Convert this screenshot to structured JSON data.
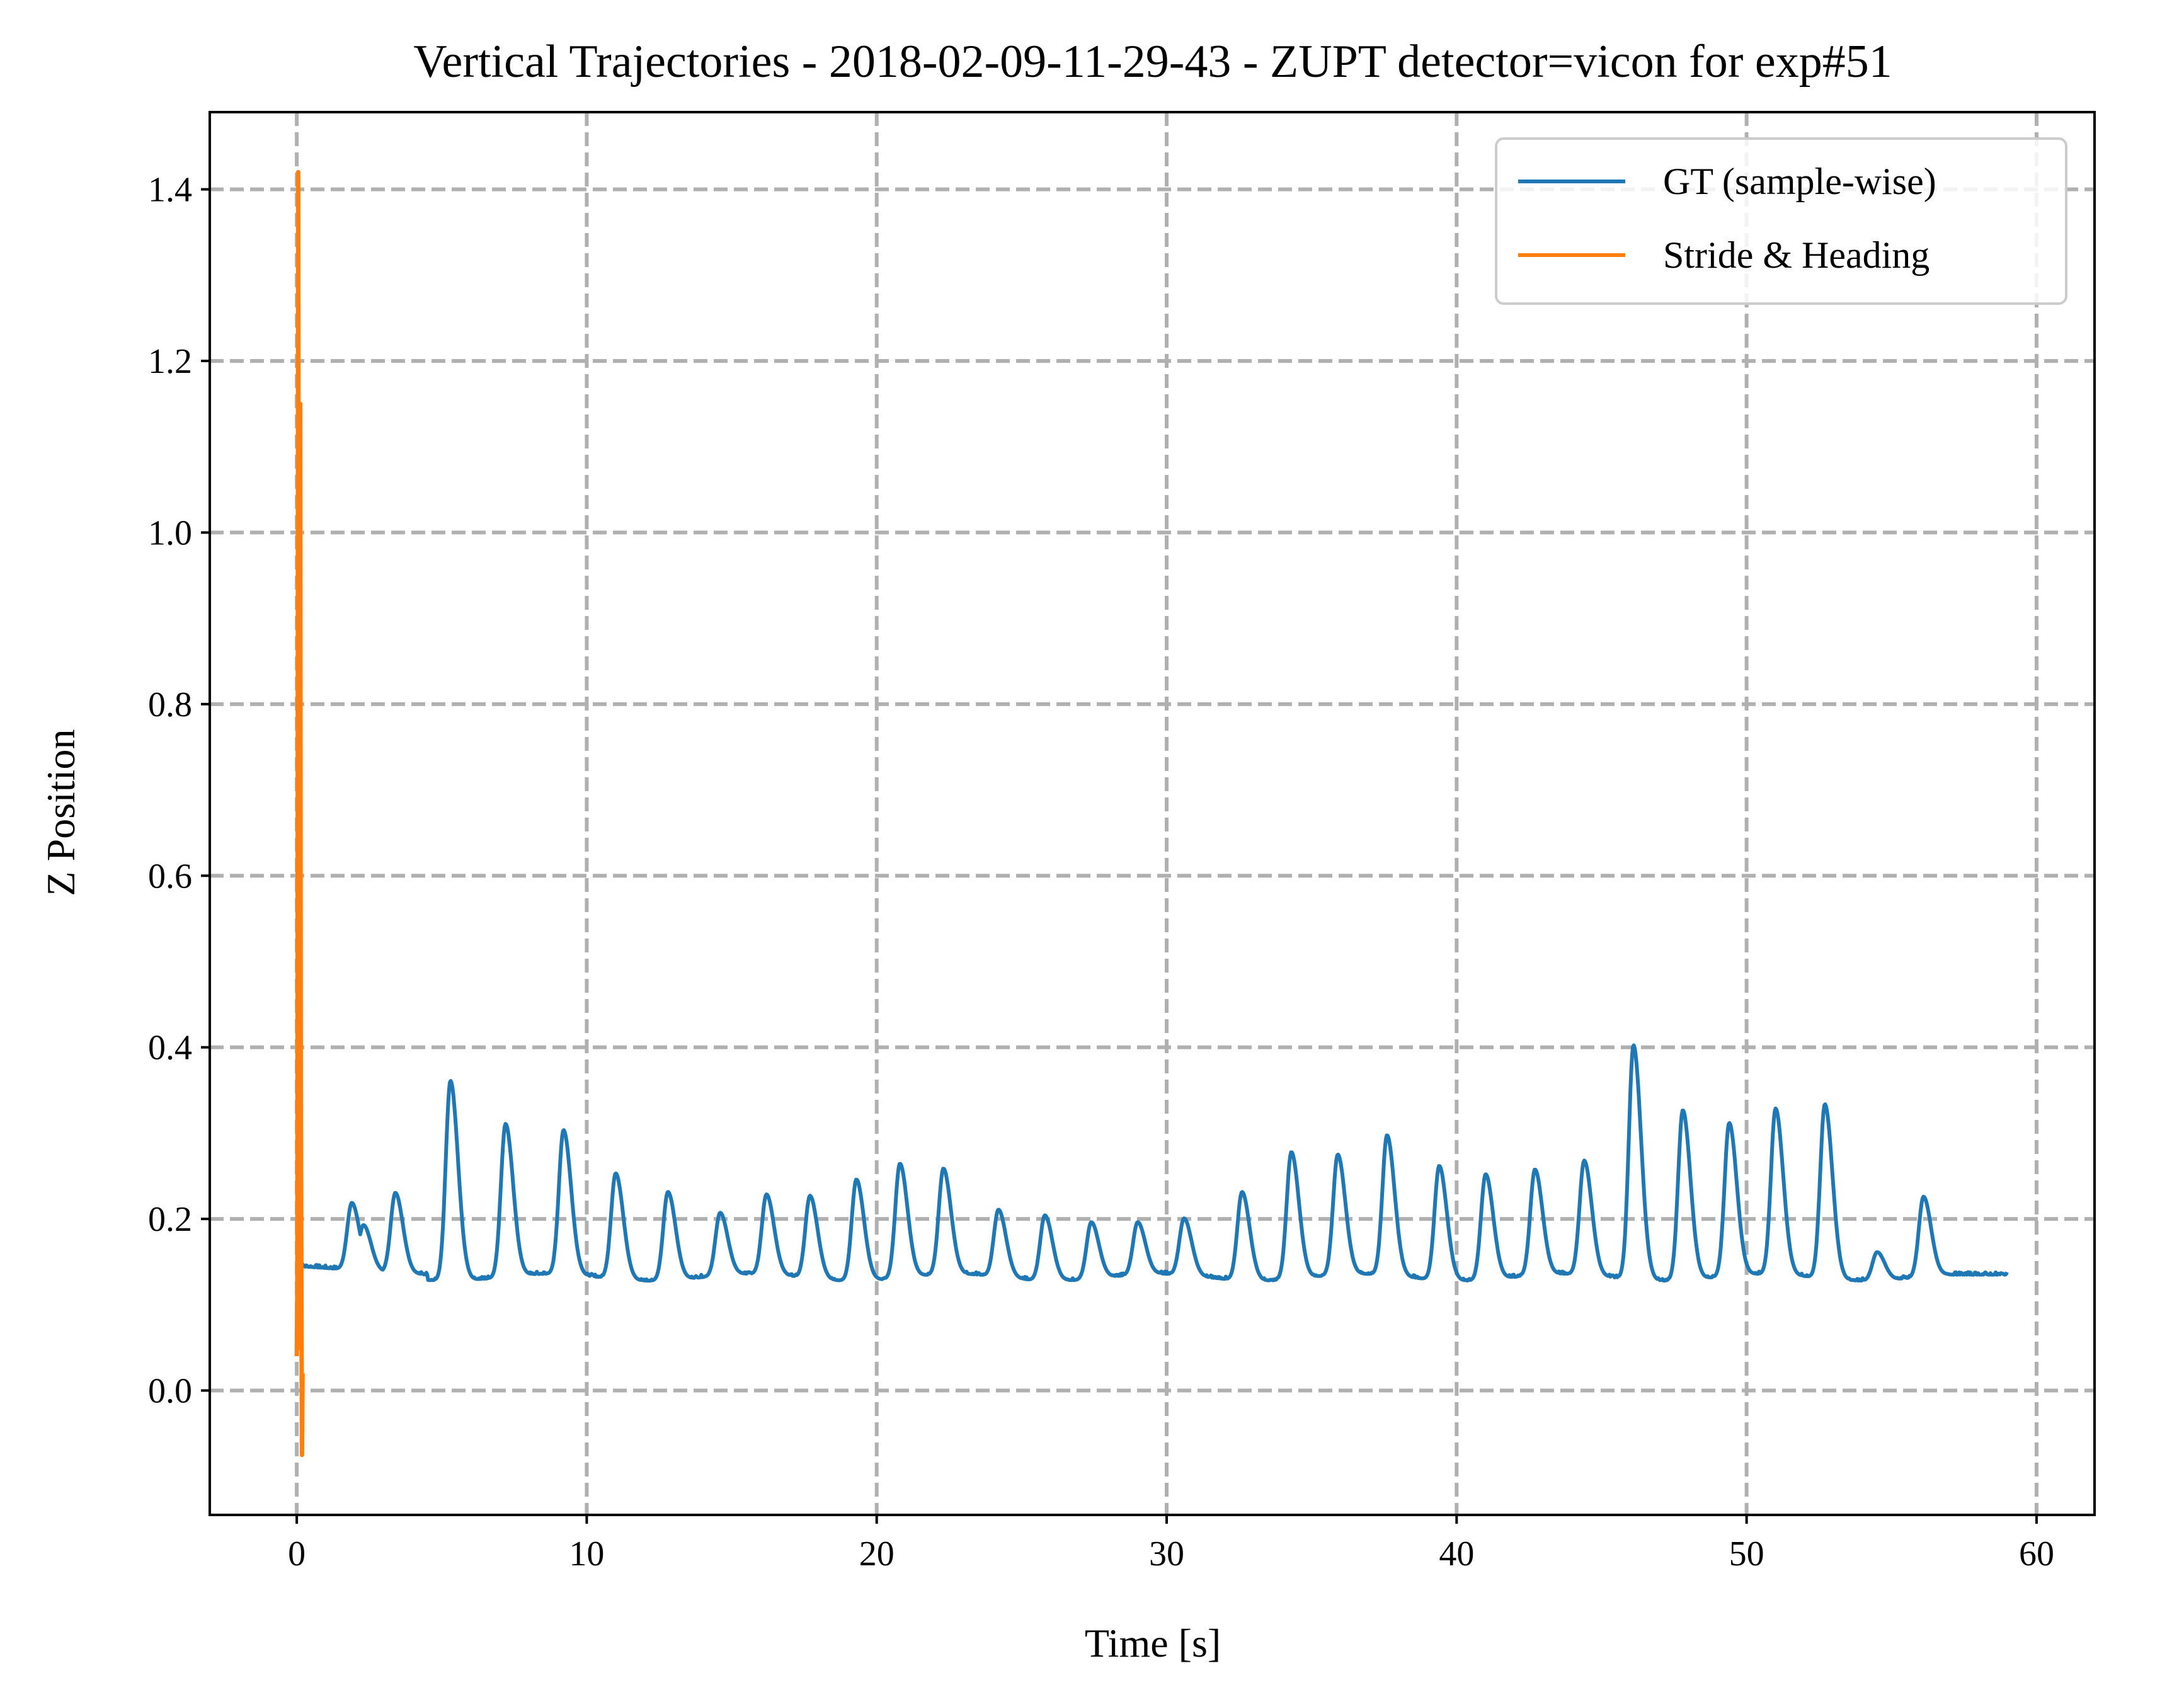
{
  "chart_data": {
    "type": "line",
    "title": "Vertical Trajectories - 2018-02-09-11-29-43 - ZUPT detector=vicon for exp#51",
    "xlabel": "Time [s]",
    "ylabel": "Z Position",
    "xlim": [
      -3,
      62
    ],
    "ylim": [
      -0.145,
      1.49
    ],
    "xticks": [
      0,
      10,
      20,
      30,
      40,
      50,
      60
    ],
    "xtick_labels": [
      "0",
      "10",
      "20",
      "30",
      "40",
      "50",
      "60"
    ],
    "yticks": [
      0.0,
      0.2,
      0.4,
      0.6,
      0.8,
      1.0,
      1.2,
      1.4
    ],
    "ytick_labels": [
      "0.0",
      "0.2",
      "0.4",
      "0.6",
      "0.8",
      "1.0",
      "1.2",
      "1.4"
    ],
    "grid": true,
    "grid_style": "dashed",
    "legend_position": "top-right",
    "series": [
      {
        "name": "GT (sample-wise)",
        "color": "#1f77b4",
        "baseline_start": [
          0.0,
          0.145
        ],
        "baseline_end": [
          59.0,
          0.135
        ],
        "base_level": 0.132,
        "peaks": [
          {
            "t": 1.9,
            "z": 0.21
          },
          {
            "t": 2.3,
            "z": 0.185
          },
          {
            "t": 3.4,
            "z": 0.225
          },
          {
            "t": 5.3,
            "z": 0.365
          },
          {
            "t": 7.2,
            "z": 0.31
          },
          {
            "t": 9.2,
            "z": 0.3
          },
          {
            "t": 11.0,
            "z": 0.255
          },
          {
            "t": 12.8,
            "z": 0.235
          },
          {
            "t": 14.6,
            "z": 0.205
          },
          {
            "t": 16.2,
            "z": 0.225
          },
          {
            "t": 17.7,
            "z": 0.228
          },
          {
            "t": 19.3,
            "z": 0.25
          },
          {
            "t": 20.8,
            "z": 0.265
          },
          {
            "t": 22.3,
            "z": 0.255
          },
          {
            "t": 24.2,
            "z": 0.21
          },
          {
            "t": 25.8,
            "z": 0.208
          },
          {
            "t": 27.4,
            "z": 0.198
          },
          {
            "t": 29.0,
            "z": 0.193
          },
          {
            "t": 30.6,
            "z": 0.198
          },
          {
            "t": 32.6,
            "z": 0.235
          },
          {
            "t": 34.3,
            "z": 0.28
          },
          {
            "t": 35.9,
            "z": 0.272
          },
          {
            "t": 37.6,
            "z": 0.295
          },
          {
            "t": 39.4,
            "z": 0.265
          },
          {
            "t": 41.0,
            "z": 0.255
          },
          {
            "t": 42.7,
            "z": 0.255
          },
          {
            "t": 44.4,
            "z": 0.265
          },
          {
            "t": 46.1,
            "z": 0.405
          },
          {
            "t": 47.8,
            "z": 0.33
          },
          {
            "t": 49.4,
            "z": 0.31
          },
          {
            "t": 51.0,
            "z": 0.325
          },
          {
            "t": 52.7,
            "z": 0.335
          },
          {
            "t": 54.5,
            "z": 0.165
          },
          {
            "t": 56.1,
            "z": 0.225
          }
        ]
      },
      {
        "name": "Stride & Heading",
        "color": "#ff7f0e",
        "x": [
          0.0,
          0.02,
          0.05,
          0.07,
          0.09,
          0.12,
          0.14,
          0.16,
          0.18,
          0.2
        ],
        "y": [
          0.04,
          0.12,
          1.42,
          0.6,
          0.05,
          1.15,
          0.35,
          0.11,
          -0.075,
          0.02
        ]
      }
    ]
  }
}
